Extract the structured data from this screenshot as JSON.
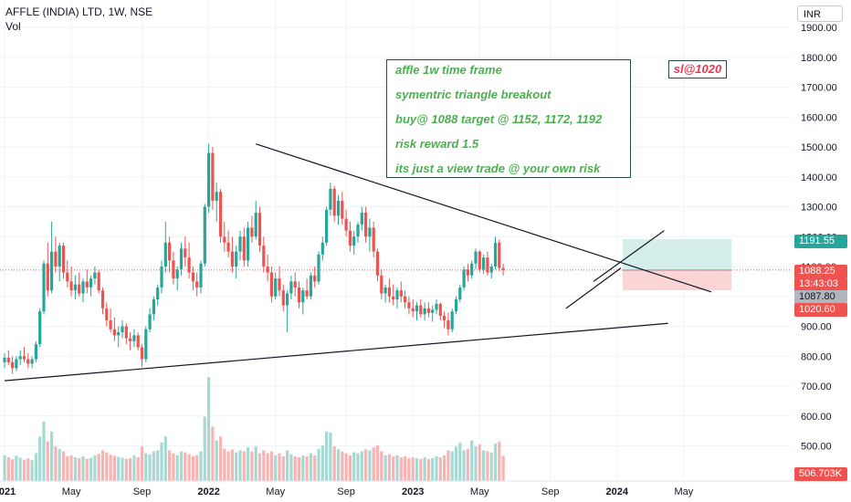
{
  "header": {
    "symbol_title": "AFFLE (INDIA) LTD, 1W, NSE",
    "volume_label": "Vol",
    "currency": "INR"
  },
  "annotations": {
    "note_lines": [
      "affle 1w time frame",
      "symentric triangle breakout",
      "buy@ 1088 target @ 1152, 1172, 1192",
      "risk reward 1.5",
      "its just a view trade @ your own risk"
    ],
    "stop_loss_label": "sl@1020"
  },
  "price_tags": {
    "target": "1191.55",
    "current": "1088.25",
    "countdown": "13:43:03",
    "entry": "1087.80",
    "stop": "1020.60",
    "volume": "506.703K"
  },
  "colors": {
    "up": "#26a69a",
    "down": "#ef5350",
    "vol_up": "#a6d9d3",
    "vol_down": "#f7b4b3",
    "target_zone": "#d3eeeb",
    "stop_zone": "#fbd5d6",
    "trendline": "#131722",
    "grid": "#f0f3fa",
    "price_line": "#ef5350"
  },
  "chart_data": {
    "type": "candlestick",
    "title": "AFFLE (INDIA) LTD, 1W, NSE",
    "y_axis": {
      "ticks": [
        500,
        600,
        700,
        800,
        900,
        1000,
        1100,
        1200,
        1300,
        1400,
        1500,
        1600,
        1700,
        1800,
        1900
      ],
      "tick_labels": [
        "500.00",
        "600.00",
        "700.00",
        "800.00",
        "900.00",
        "1000.00",
        "1100.00",
        "1200.00",
        "1300.00",
        "1400.00",
        "1500.00",
        "1600.00",
        "1700.00",
        "1800.00",
        "1900.00"
      ],
      "price_range": [
        480,
        1920
      ]
    },
    "x_axis": {
      "labels": [
        "2021",
        "May",
        "Sep",
        "2022",
        "May",
        "Sep",
        "2023",
        "May",
        "Sep",
        "2024",
        "May"
      ],
      "label_weeks": [
        0,
        17,
        35,
        52,
        69,
        87,
        104,
        121,
        139,
        156,
        173
      ]
    },
    "legend": "none",
    "grid": true,
    "candles_ohlc": [
      [
        780,
        810,
        760,
        795
      ],
      [
        795,
        820,
        770,
        780
      ],
      [
        780,
        800,
        740,
        760
      ],
      [
        760,
        800,
        750,
        790
      ],
      [
        790,
        820,
        770,
        800
      ],
      [
        800,
        830,
        780,
        790
      ],
      [
        790,
        810,
        760,
        775
      ],
      [
        775,
        800,
        760,
        790
      ],
      [
        790,
        850,
        780,
        840
      ],
      [
        840,
        960,
        830,
        950
      ],
      [
        950,
        1120,
        940,
        1110
      ],
      [
        1110,
        1180,
        1000,
        1020
      ],
      [
        1020,
        1250,
        1010,
        1150
      ],
      [
        1150,
        1200,
        1080,
        1100
      ],
      [
        1100,
        1180,
        1050,
        1170
      ],
      [
        1170,
        1180,
        1060,
        1080
      ],
      [
        1080,
        1120,
        1030,
        1050
      ],
      [
        1050,
        1100,
        1000,
        1020
      ],
      [
        1020,
        1070,
        990,
        1040
      ],
      [
        1040,
        1080,
        1000,
        1010
      ],
      [
        1010,
        1060,
        980,
        1050
      ],
      [
        1050,
        1090,
        1010,
        1030
      ],
      [
        1030,
        1070,
        1000,
        1060
      ],
      [
        1060,
        1100,
        1040,
        1080
      ],
      [
        1080,
        1090,
        1010,
        1020
      ],
      [
        1020,
        1030,
        940,
        960
      ],
      [
        960,
        980,
        900,
        920
      ],
      [
        920,
        960,
        880,
        890
      ],
      [
        890,
        930,
        850,
        870
      ],
      [
        870,
        900,
        830,
        880
      ],
      [
        880,
        920,
        860,
        900
      ],
      [
        900,
        910,
        840,
        860
      ],
      [
        860,
        880,
        820,
        850
      ],
      [
        850,
        890,
        830,
        870
      ],
      [
        870,
        880,
        820,
        830
      ],
      [
        830,
        840,
        765,
        790
      ],
      [
        790,
        900,
        780,
        890
      ],
      [
        890,
        960,
        880,
        940
      ],
      [
        940,
        1000,
        920,
        990
      ],
      [
        990,
        1040,
        970,
        1030
      ],
      [
        1030,
        1120,
        1010,
        1100
      ],
      [
        1100,
        1250,
        1080,
        1180
      ],
      [
        1180,
        1200,
        1080,
        1120
      ],
      [
        1120,
        1150,
        1040,
        1060
      ],
      [
        1060,
        1100,
        1020,
        1090
      ],
      [
        1090,
        1180,
        1070,
        1160
      ],
      [
        1160,
        1200,
        1100,
        1130
      ],
      [
        1130,
        1180,
        1060,
        1080
      ],
      [
        1080,
        1100,
        1020,
        1050
      ],
      [
        1050,
        1080,
        1000,
        1030
      ],
      [
        1030,
        1120,
        1010,
        1110
      ],
      [
        1110,
        1310,
        1100,
        1300
      ],
      [
        1300,
        1510,
        1280,
        1480
      ],
      [
        1480,
        1500,
        1290,
        1320
      ],
      [
        1320,
        1380,
        1250,
        1350
      ],
      [
        1350,
        1360,
        1180,
        1200
      ],
      [
        1200,
        1250,
        1150,
        1180
      ],
      [
        1180,
        1220,
        1130,
        1150
      ],
      [
        1150,
        1200,
        1080,
        1100
      ],
      [
        1100,
        1170,
        1060,
        1150
      ],
      [
        1150,
        1220,
        1120,
        1200
      ],
      [
        1200,
        1230,
        1100,
        1120
      ],
      [
        1120,
        1250,
        1100,
        1230
      ],
      [
        1230,
        1270,
        1180,
        1200
      ],
      [
        1200,
        1320,
        1190,
        1280
      ],
      [
        1280,
        1300,
        1150,
        1170
      ],
      [
        1170,
        1200,
        1080,
        1100
      ],
      [
        1100,
        1140,
        1050,
        1080
      ],
      [
        1080,
        1100,
        980,
        1000
      ],
      [
        1000,
        1080,
        990,
        1060
      ],
      [
        1060,
        1100,
        1000,
        1020
      ],
      [
        1020,
        1040,
        950,
        970
      ],
      [
        970,
        1020,
        880,
        1010
      ],
      [
        1010,
        1070,
        990,
        1050
      ],
      [
        1050,
        1080,
        1000,
        1030
      ],
      [
        1030,
        1050,
        960,
        980
      ],
      [
        980,
        1030,
        940,
        1020
      ],
      [
        1020,
        1060,
        990,
        1000
      ],
      [
        1000,
        1080,
        990,
        1070
      ],
      [
        1070,
        1100,
        1030,
        1050
      ],
      [
        1050,
        1150,
        1040,
        1140
      ],
      [
        1140,
        1200,
        1120,
        1180
      ],
      [
        1180,
        1300,
        1170,
        1290
      ],
      [
        1290,
        1380,
        1270,
        1360
      ],
      [
        1360,
        1370,
        1250,
        1270
      ],
      [
        1270,
        1340,
        1240,
        1320
      ],
      [
        1320,
        1350,
        1240,
        1260
      ],
      [
        1260,
        1290,
        1200,
        1220
      ],
      [
        1220,
        1250,
        1150,
        1170
      ],
      [
        1170,
        1220,
        1140,
        1200
      ],
      [
        1200,
        1250,
        1180,
        1240
      ],
      [
        1240,
        1300,
        1220,
        1280
      ],
      [
        1280,
        1300,
        1180,
        1200
      ],
      [
        1200,
        1260,
        1150,
        1230
      ],
      [
        1230,
        1250,
        1130,
        1150
      ],
      [
        1150,
        1160,
        1050,
        1070
      ],
      [
        1070,
        1090,
        990,
        1010
      ],
      [
        1010,
        1040,
        980,
        1030
      ],
      [
        1030,
        1060,
        980,
        1000
      ],
      [
        1000,
        1040,
        970,
        990
      ],
      [
        990,
        1030,
        960,
        1020
      ],
      [
        1020,
        1050,
        980,
        1000
      ],
      [
        1000,
        1020,
        960,
        980
      ],
      [
        980,
        1000,
        940,
        960
      ],
      [
        960,
        990,
        930,
        950
      ],
      [
        950,
        980,
        920,
        970
      ],
      [
        970,
        990,
        930,
        940
      ],
      [
        940,
        980,
        920,
        960
      ],
      [
        960,
        980,
        930,
        945
      ],
      [
        945,
        970,
        915,
        955
      ],
      [
        955,
        990,
        940,
        975
      ],
      [
        975,
        980,
        920,
        935
      ],
      [
        935,
        950,
        895,
        920
      ],
      [
        920,
        945,
        870,
        890
      ],
      [
        890,
        960,
        880,
        950
      ],
      [
        950,
        1000,
        940,
        990
      ],
      [
        990,
        1040,
        980,
        1030
      ],
      [
        1030,
        1100,
        1020,
        1090
      ],
      [
        1090,
        1110,
        1050,
        1070
      ],
      [
        1070,
        1120,
        1060,
        1110
      ],
      [
        1110,
        1160,
        1090,
        1150
      ],
      [
        1150,
        1155,
        1080,
        1090
      ],
      [
        1090,
        1140,
        1075,
        1130
      ],
      [
        1130,
        1150,
        1070,
        1080
      ],
      [
        1080,
        1110,
        1060,
        1100
      ],
      [
        1100,
        1200,
        1090,
        1180
      ],
      [
        1180,
        1190,
        1085,
        1095
      ],
      [
        1095,
        1110,
        1070,
        1088
      ]
    ],
    "volume_k": [
      520,
      480,
      440,
      510,
      470,
      430,
      460,
      420,
      560,
      900,
      1200,
      800,
      1000,
      700,
      650,
      600,
      500,
      520,
      480,
      460,
      500,
      450,
      470,
      520,
      550,
      620,
      580,
      530,
      510,
      490,
      470,
      450,
      460,
      520,
      480,
      700,
      560,
      540,
      600,
      620,
      780,
      900,
      620,
      560,
      520,
      600,
      580,
      540,
      500,
      520,
      600,
      1300,
      2100,
      1100,
      820,
      900,
      650,
      600,
      640,
      580,
      620,
      600,
      680,
      600,
      700,
      560,
      620,
      560,
      600,
      520,
      560,
      500,
      620,
      540,
      500,
      480,
      520,
      500,
      560,
      520,
      650,
      720,
      1000,
      980,
      700,
      640,
      600,
      560,
      520,
      580,
      560,
      600,
      640,
      620,
      680,
      720,
      600,
      520,
      540,
      500,
      520,
      480,
      500,
      460,
      480,
      460,
      440,
      480,
      440,
      460,
      500,
      480,
      520,
      620,
      600,
      700,
      780,
      620,
      650,
      820,
      700,
      740,
      620,
      600,
      580,
      760,
      800,
      506.703
    ],
    "volume_axis_max_k": 2400,
    "trendlines": [
      {
        "name": "lower-support",
        "from": [
          0,
          718
        ],
        "to": [
          169,
          910
        ]
      },
      {
        "name": "upper-resistance",
        "from": [
          64,
          1510
        ],
        "to": [
          180,
          1015
        ]
      },
      {
        "name": "breakout-lower",
        "from": [
          143,
          960
        ],
        "to": [
          157,
          1095
        ]
      },
      {
        "name": "breakout-upper",
        "from": [
          150,
          1050
        ],
        "to": [
          168,
          1220
        ]
      }
    ],
    "position": {
      "entry": 1087.8,
      "target": 1191.55,
      "stop": 1020.6,
      "start_week": 160,
      "end_week": 186
    }
  }
}
